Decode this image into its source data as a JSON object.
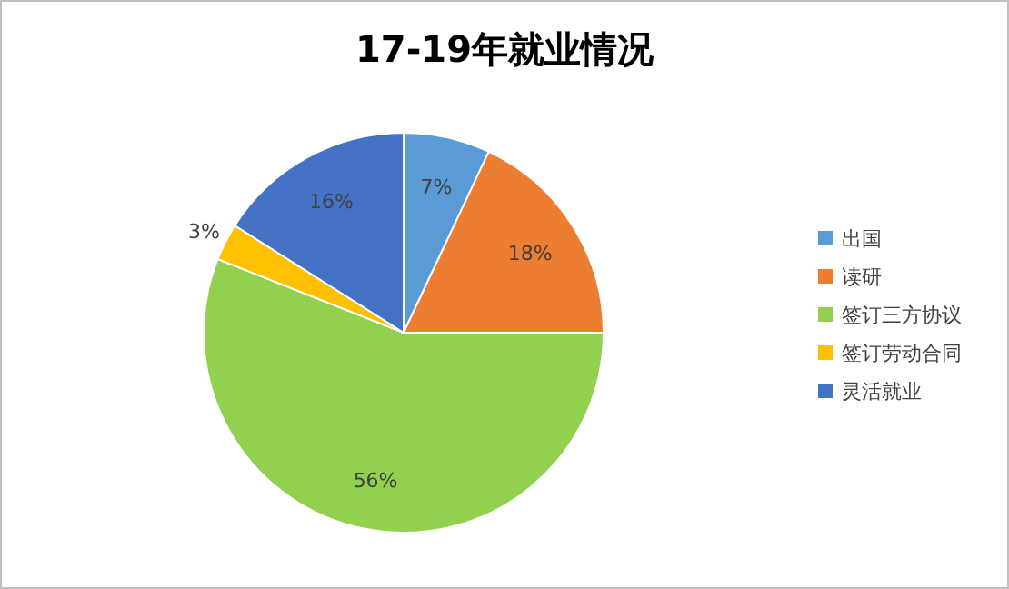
{
  "chart_data": {
    "type": "pie",
    "title": "17-19年就业情况",
    "categories": [
      "出国",
      "读研",
      "签订三方协议",
      "签订劳动合同",
      "灵活就业"
    ],
    "values": [
      7,
      18,
      56,
      3,
      16
    ],
    "colors": [
      "#5b9bd5",
      "#ed7d31",
      "#92d050",
      "#ffc000",
      "#4472c4"
    ],
    "value_labels": [
      "7%",
      "18%",
      "56%",
      "3%",
      "16%"
    ],
    "legend": "right"
  }
}
